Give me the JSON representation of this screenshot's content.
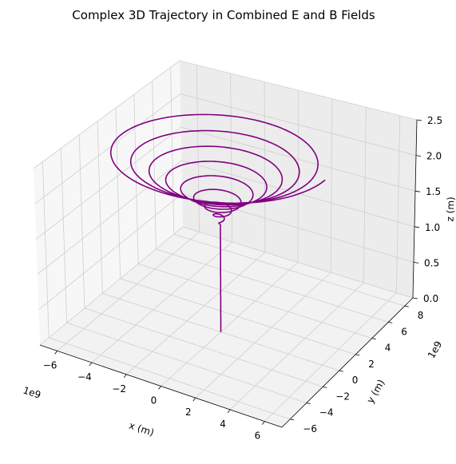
{
  "chart_data": {
    "type": "line3d",
    "title": "Complex 3D Trajectory in Combined E and B Fields",
    "xlabel": "x (m)",
    "ylabel": "y (m)",
    "zlabel": "z (m)",
    "x_offset_label": "1e9",
    "y_offset_label": "1e9",
    "xlim": [
      -7,
      7
    ],
    "ylim": [
      -7,
      9
    ],
    "zlim": [
      0,
      2.5
    ],
    "x_ticks": [
      {
        "value": -6,
        "label": "−6"
      },
      {
        "value": -4,
        "label": "−4"
      },
      {
        "value": -2,
        "label": "−2"
      },
      {
        "value": 0,
        "label": "0"
      },
      {
        "value": 2,
        "label": "2"
      },
      {
        "value": 4,
        "label": "4"
      },
      {
        "value": 6,
        "label": "6"
      }
    ],
    "y_ticks": [
      {
        "value": -6,
        "label": "−6"
      },
      {
        "value": -4,
        "label": "−4"
      },
      {
        "value": -2,
        "label": "−2"
      },
      {
        "value": 0,
        "label": "0"
      },
      {
        "value": 2,
        "label": "2"
      },
      {
        "value": 4,
        "label": "4"
      },
      {
        "value": 6,
        "label": "6"
      },
      {
        "value": 8,
        "label": "8"
      }
    ],
    "z_ticks": [
      {
        "value": 0,
        "label": "0.0"
      },
      {
        "value": 0.5,
        "label": "0.5"
      },
      {
        "value": 1,
        "label": "1.0"
      },
      {
        "value": 1.5,
        "label": "1.5"
      },
      {
        "value": 2,
        "label": "2.0"
      },
      {
        "value": 2.5,
        "label": "2.5"
      }
    ],
    "grid": true,
    "series": [
      {
        "name": "",
        "color": "#800080",
        "description_params": {
          "z_start": 0,
          "z_end": 2.5,
          "radius_start": 0,
          "radius_end": 6,
          "turns": 9,
          "helix_start_z": 1.45
        }
      }
    ]
  }
}
